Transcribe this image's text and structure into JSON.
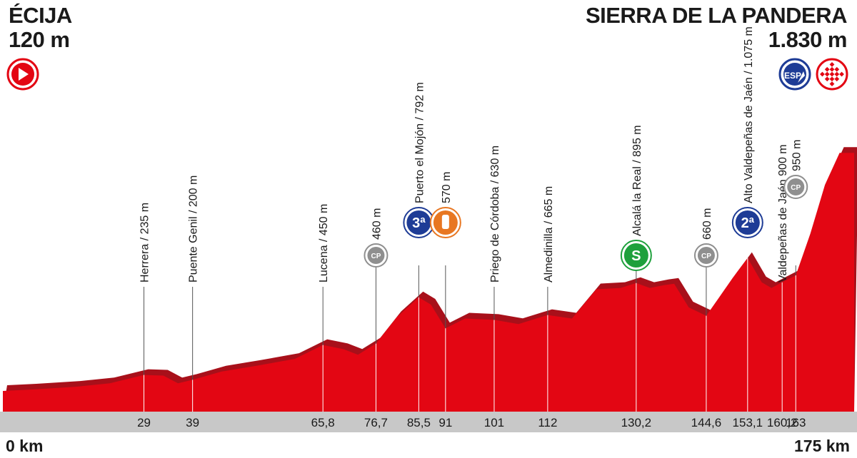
{
  "start": {
    "name": "ÉCIJA",
    "altitude": "120 m",
    "icon": "start-arrow-icon",
    "color": "#e30613"
  },
  "finish": {
    "name": "SIERRA DE LA PANDERA",
    "altitude": "1.830 m",
    "icons": [
      "esp-summit-finish-icon",
      "checkered-flag-icon"
    ]
  },
  "axis": {
    "start_label": "0 km",
    "end_label": "175 km",
    "total_km": 175
  },
  "colors": {
    "profile": "#e30613",
    "profile_dark": "#a8101a",
    "axis_band": "#c8c8c8",
    "cp_icon": "#8f8f8f",
    "mountain_icon": "#1e3c96",
    "sprint_icon": "#1ea03c",
    "feed_icon": "#e87722"
  },
  "waypoints": [
    {
      "km": "29",
      "label": "Herrera / 235 m",
      "icon": null
    },
    {
      "km": "39",
      "label": "Puente Genil / 200 m",
      "icon": null
    },
    {
      "km": "65,8",
      "label": "Lucena / 450 m",
      "icon": null
    },
    {
      "km": "76,7",
      "label": "460 m",
      "icon": "checkpoint-icon",
      "icon_text": "CP"
    },
    {
      "km": "85,5",
      "label": "Puerto el Mojón / 792 m",
      "icon": "mountain-3rd-category-icon",
      "icon_text": "3ª"
    },
    {
      "km": "91",
      "label": "570 m",
      "icon": "feed-zone-icon"
    },
    {
      "km": "101",
      "label": "Priego de Córdoba / 630 m",
      "icon": null
    },
    {
      "km": "112",
      "label": "Almedinilla / 665 m",
      "icon": null
    },
    {
      "km": "130,2",
      "label": "Alcalá la Real / 895 m",
      "icon": "sprint-icon",
      "icon_text": "S"
    },
    {
      "km": "144,6",
      "label": "660 m",
      "icon": "checkpoint-icon",
      "icon_text": "CP"
    },
    {
      "km": "153,1",
      "label": "Alto Valdepeñas de Jaén / 1.075 m",
      "icon": "mountain-2nd-category-icon",
      "icon_text": "2ª"
    },
    {
      "km": "160,2",
      "label": "Valdepeñas de Jaén 900 m",
      "icon": null
    },
    {
      "km": "163",
      "label": "950 m",
      "icon": "checkpoint-icon",
      "icon_text": "CP"
    }
  ],
  "profile_altitudes_m": {
    "km": [
      0,
      6,
      15,
      22,
      29,
      33,
      36,
      39,
      45,
      52,
      60,
      65.8,
      70,
      73,
      76.7,
      81,
      85.5,
      88,
      91,
      95,
      101,
      106,
      112,
      117,
      122,
      127,
      130.2,
      133,
      136,
      138,
      141,
      144.6,
      147,
      150,
      153.1,
      156,
      158,
      160.2,
      163,
      166,
      169,
      172,
      175
    ],
    "alt": [
      120,
      130,
      150,
      175,
      235,
      230,
      175,
      200,
      260,
      300,
      350,
      450,
      420,
      380,
      460,
      650,
      792,
      740,
      570,
      640,
      630,
      600,
      665,
      640,
      850,
      860,
      895,
      860,
      880,
      890,
      720,
      660,
      780,
      930,
      1075,
      900,
      860,
      900,
      950,
      1250,
      1600,
      1830,
      1830
    ]
  }
}
